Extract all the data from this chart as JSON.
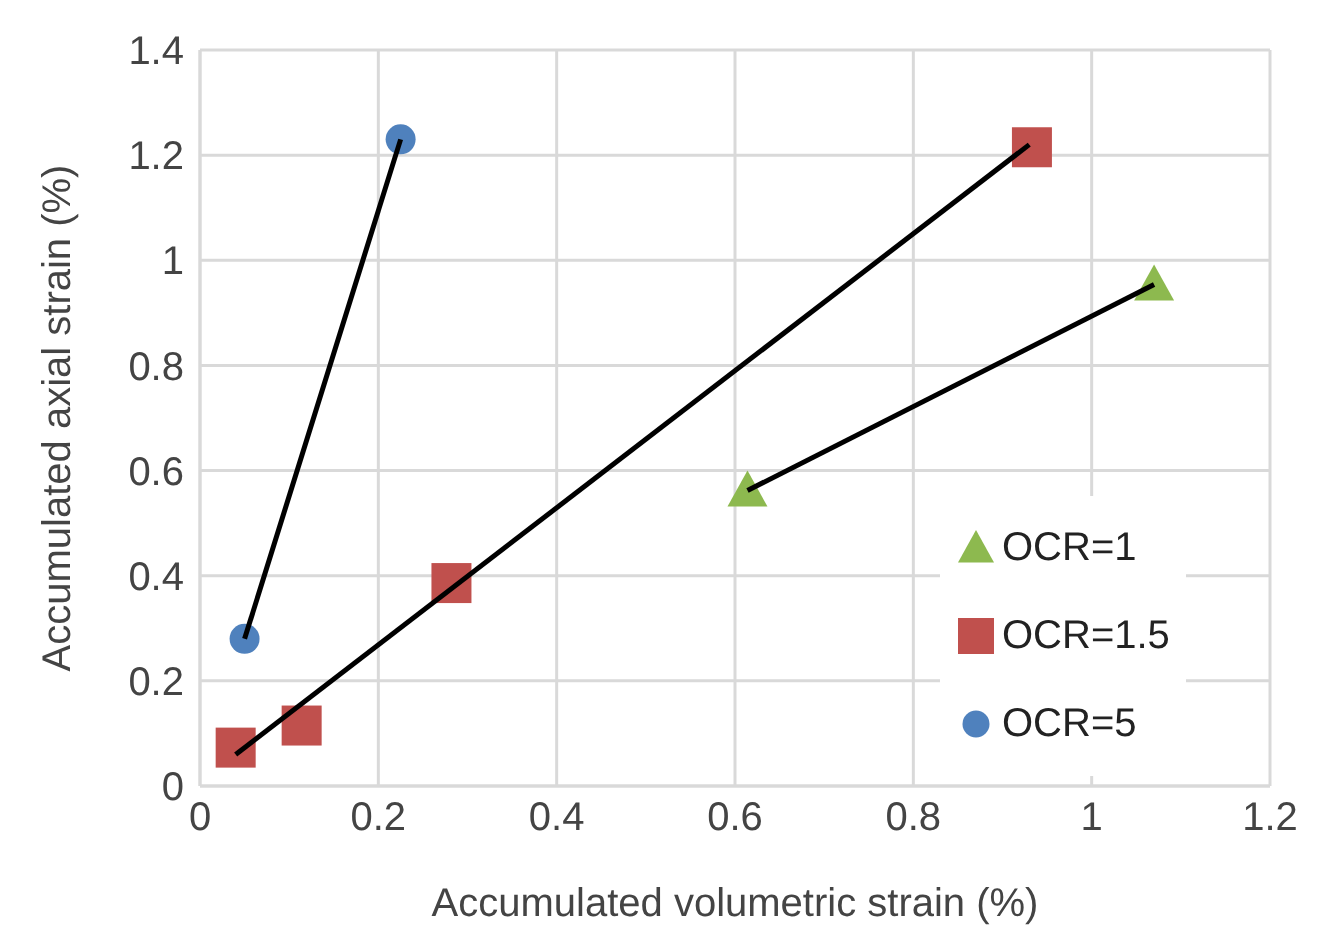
{
  "chart_data": {
    "type": "scatter",
    "xlabel": "Accumulated volumetric strain (%)",
    "ylabel": "Accumulated axial strain (%)",
    "xlim": [
      0,
      1.2
    ],
    "xticks": [
      0,
      0.2,
      0.4,
      0.6,
      0.8,
      1,
      1.2
    ],
    "ylim": [
      0,
      1.4
    ],
    "yticks": [
      0,
      0.2,
      0.4,
      0.6,
      0.8,
      1,
      1.2,
      1.4
    ],
    "grid": true,
    "legend": "bottom right",
    "series": [
      {
        "type": "line",
        "color": "#000000",
        "x": [
          0.05,
          0.225
        ],
        "values": [
          0.28,
          1.23
        ],
        "marker": "none"
      },
      {
        "type": "line",
        "color": "#000000",
        "x": [
          0.04,
          0.93
        ],
        "values": [
          0.06,
          1.22
        ],
        "marker": "none"
      },
      {
        "type": "line",
        "color": "#000000",
        "x": [
          1.07,
          0.614
        ],
        "values": [
          0.954,
          0.562
        ],
        "marker": "none"
      },
      {
        "name": "OCR=1",
        "color": "#8db94f",
        "marker": "triangle",
        "x": [
          0.614,
          1.07
        ],
        "values": [
          0.562,
          0.954
        ]
      },
      {
        "name": "OCR=1.5",
        "color": "#c0504d",
        "marker": "square",
        "x": [
          0.04,
          0.114,
          0.282,
          0.933
        ],
        "values": [
          0.073,
          0.115,
          0.386,
          1.215
        ]
      },
      {
        "name": "OCR=5",
        "color": "#4f81bd",
        "marker": "circle",
        "x": [
          0.05,
          0.225
        ],
        "values": [
          0.28,
          1.23
        ]
      }
    ]
  }
}
